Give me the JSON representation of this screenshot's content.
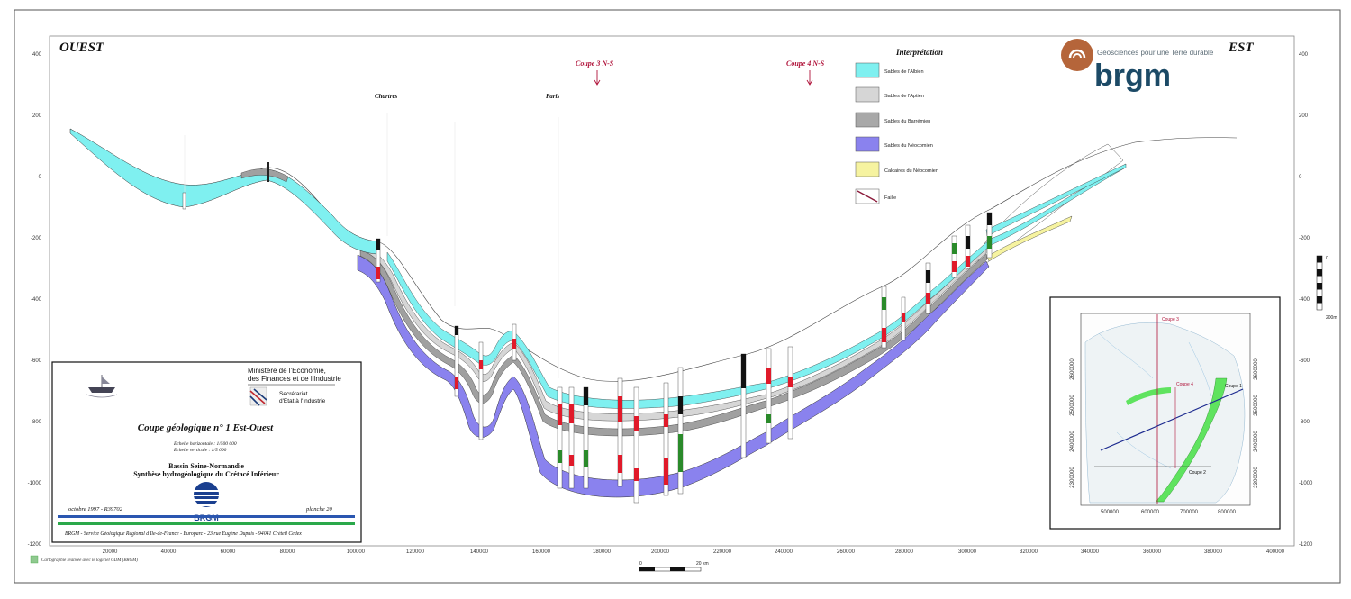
{
  "header": {
    "west": "OUEST",
    "east": "EST",
    "coupe3": "Coupe 3  N-S",
    "coupe4": "Coupe 4  N-S",
    "chartres": "Chartres",
    "paris": "Paris",
    "brgm_tagline": "Géosciences pour une Terre durable",
    "brgm_word": "brgm"
  },
  "legend": {
    "title": "Interprétation",
    "items": [
      {
        "label": "Sables de l'Albien",
        "color": "#7ff0f0"
      },
      {
        "label": "Sables de l'Aptien",
        "color": "#d6d6d6"
      },
      {
        "label": "Sables du Barrémien",
        "color": "#a8a8a8"
      },
      {
        "label": "Sables du Néocomien",
        "color": "#8a82ee"
      },
      {
        "label": "Calcaires du Néocomien",
        "color": "#f6f3a0"
      },
      {
        "label": "Faille",
        "color": "#8b1a3a"
      }
    ]
  },
  "axes": {
    "y_left": [
      "400",
      "200",
      "0",
      "-200",
      "-400",
      "-600",
      "-800",
      "-1000",
      "-1200"
    ],
    "y_right": [
      "400",
      "200",
      "0",
      "-200",
      "-400",
      "-600",
      "-800",
      "-1000",
      "-1200"
    ],
    "x": [
      "20000",
      "40000",
      "60000",
      "80000",
      "100000",
      "120000",
      "140000",
      "160000",
      "180000",
      "200000",
      "220000",
      "240000",
      "260000",
      "280000",
      "300000",
      "320000",
      "340000",
      "360000",
      "380000",
      "400000"
    ]
  },
  "scales": {
    "vertical_top": "0",
    "vertical_bottom": "200m",
    "horizontal_start": "0",
    "horizontal_end": "20 km"
  },
  "title_block": {
    "ministry_line1": "Ministère de l'Economie,",
    "ministry_line2": "des Finances et de l'Industrie",
    "secretariat_line1": "Secrétariat",
    "secretariat_line2": "d'Etat à l'Industrie",
    "title": "Coupe géologique n° 1 Est-Ouest",
    "scale_h": "Echelle horizontale : 1/500 000",
    "scale_v": "Echelle verticale :     1/5 000",
    "subtitle1": "Bassin Seine-Normandie",
    "subtitle2": "Synthèse hydrogéologique du Crétacé Inférieur",
    "date": "octobre 1997 - R39702",
    "plate": "planche 20",
    "logo_text": "BRGM",
    "footer": "BRGM - Service Géologique Régional d'Ile-de-France - Europarc - 23 rue Eugène Dupuis - 94041 Créteil Cedex"
  },
  "credit": "Cartographie réalisée avec le logiciel GDM (BRGM)",
  "inset_map": {
    "labels": [
      "Coupe 3",
      "Coupe 4",
      "Coupe 1",
      "Coupe 2"
    ],
    "x_ticks": [
      "500000",
      "600000",
      "700000",
      "800000"
    ],
    "y_ticks_left": [
      "2600000",
      "2500000",
      "2400000",
      "2300000"
    ],
    "y_ticks_right": [
      "2600000",
      "2500000",
      "2400000",
      "2300000"
    ]
  }
}
